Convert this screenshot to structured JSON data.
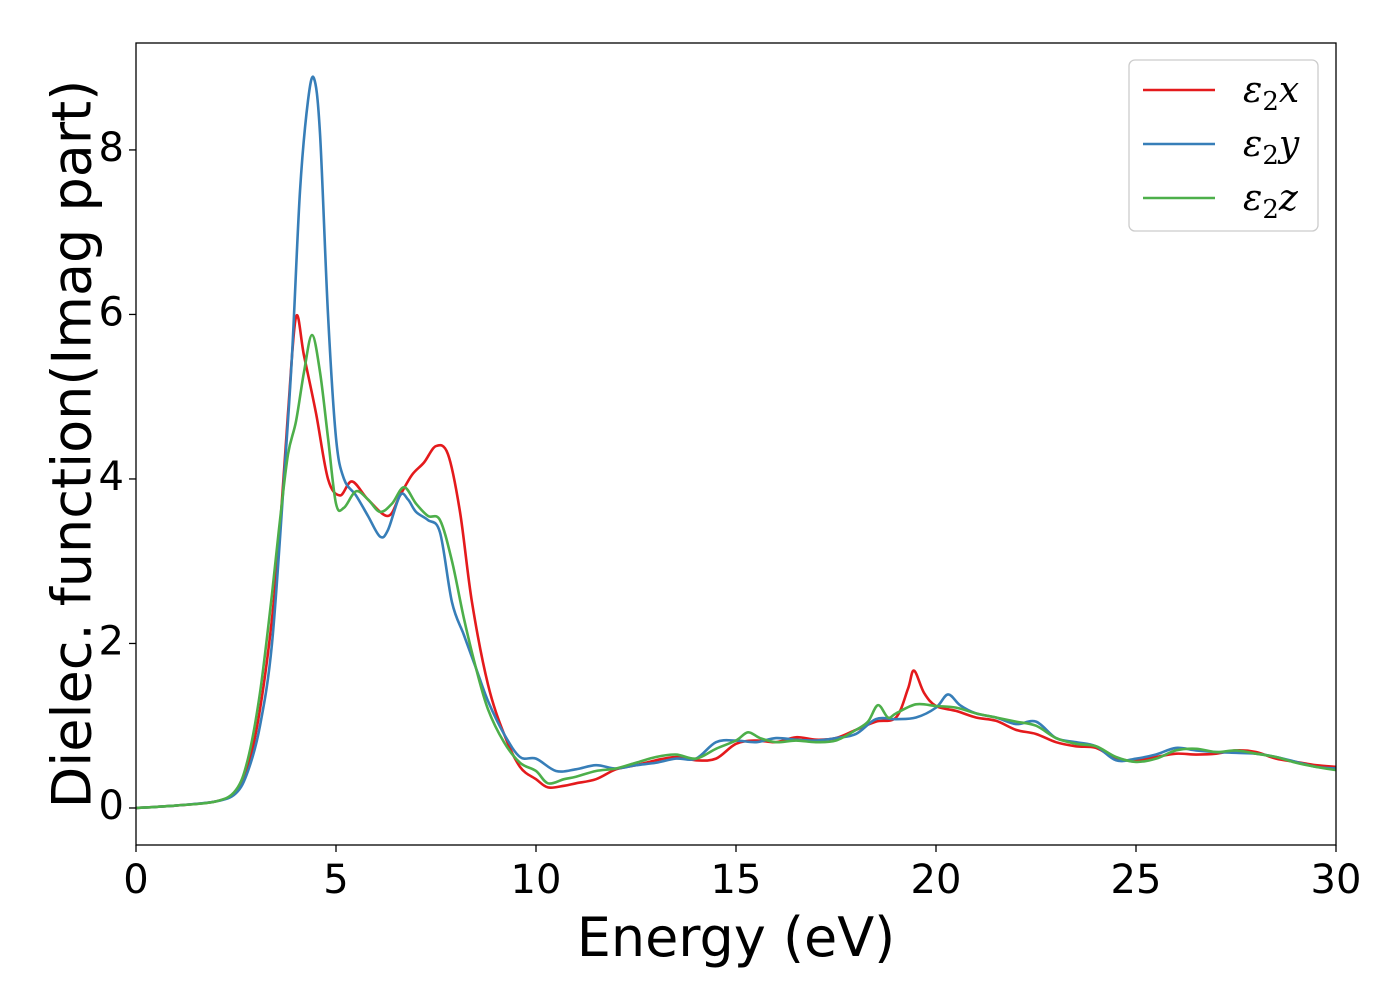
{
  "chart_data": {
    "type": "line",
    "title": "",
    "xlabel": "Energy (eV)",
    "ylabel": "Dielec. function(Imag part)",
    "xlim": [
      0,
      30
    ],
    "ylim": [
      -0.45,
      9.3
    ],
    "xticks": [
      0,
      5,
      10,
      15,
      20,
      25,
      30
    ],
    "yticks": [
      0,
      2,
      4,
      6,
      8
    ],
    "grid": false,
    "legend_position": "top-right",
    "series": [
      {
        "name": "ε₂x",
        "legend_main": "ε",
        "legend_sub": "2",
        "legend_suffix": "x",
        "color": "#e41a1c",
        "points": [
          [
            0,
            0
          ],
          [
            1,
            0.03
          ],
          [
            2,
            0.08
          ],
          [
            2.5,
            0.2
          ],
          [
            2.8,
            0.5
          ],
          [
            3.1,
            1.2
          ],
          [
            3.4,
            2.3
          ],
          [
            3.6,
            3.4
          ],
          [
            3.8,
            4.8
          ],
          [
            4.0,
            5.97
          ],
          [
            4.2,
            5.5
          ],
          [
            4.5,
            4.8
          ],
          [
            4.8,
            4.0
          ],
          [
            5.1,
            3.8
          ],
          [
            5.4,
            3.97
          ],
          [
            5.8,
            3.75
          ],
          [
            6.3,
            3.55
          ],
          [
            6.6,
            3.8
          ],
          [
            6.9,
            4.05
          ],
          [
            7.2,
            4.2
          ],
          [
            7.5,
            4.4
          ],
          [
            7.8,
            4.3
          ],
          [
            8.1,
            3.6
          ],
          [
            8.4,
            2.5
          ],
          [
            8.8,
            1.5
          ],
          [
            9.2,
            0.9
          ],
          [
            9.6,
            0.5
          ],
          [
            10.0,
            0.35
          ],
          [
            10.3,
            0.25
          ],
          [
            10.7,
            0.27
          ],
          [
            11.0,
            0.3
          ],
          [
            11.5,
            0.35
          ],
          [
            12.0,
            0.47
          ],
          [
            12.5,
            0.52
          ],
          [
            13.0,
            0.58
          ],
          [
            13.5,
            0.62
          ],
          [
            14.0,
            0.58
          ],
          [
            14.5,
            0.6
          ],
          [
            15.0,
            0.78
          ],
          [
            15.5,
            0.82
          ],
          [
            16.0,
            0.8
          ],
          [
            16.5,
            0.86
          ],
          [
            17.0,
            0.83
          ],
          [
            17.5,
            0.85
          ],
          [
            18.0,
            0.95
          ],
          [
            18.5,
            1.05
          ],
          [
            19.0,
            1.1
          ],
          [
            19.3,
            1.45
          ],
          [
            19.45,
            1.67
          ],
          [
            19.7,
            1.4
          ],
          [
            20.0,
            1.24
          ],
          [
            20.5,
            1.18
          ],
          [
            21.0,
            1.1
          ],
          [
            21.5,
            1.06
          ],
          [
            22.0,
            0.95
          ],
          [
            22.5,
            0.9
          ],
          [
            23.0,
            0.8
          ],
          [
            23.5,
            0.75
          ],
          [
            24.0,
            0.73
          ],
          [
            24.5,
            0.6
          ],
          [
            25.0,
            0.58
          ],
          [
            25.5,
            0.62
          ],
          [
            26.0,
            0.66
          ],
          [
            26.5,
            0.65
          ],
          [
            27.0,
            0.66
          ],
          [
            27.5,
            0.7
          ],
          [
            28.0,
            0.68
          ],
          [
            28.5,
            0.6
          ],
          [
            29.0,
            0.56
          ],
          [
            29.5,
            0.52
          ],
          [
            30.0,
            0.5
          ]
        ]
      },
      {
        "name": "ε₂y",
        "legend_main": "ε",
        "legend_sub": "2",
        "legend_suffix": "y",
        "color": "#377eb8",
        "points": [
          [
            0,
            0
          ],
          [
            1,
            0.03
          ],
          [
            2,
            0.08
          ],
          [
            2.5,
            0.18
          ],
          [
            2.8,
            0.45
          ],
          [
            3.1,
            1.0
          ],
          [
            3.4,
            2.0
          ],
          [
            3.7,
            4.0
          ],
          [
            3.9,
            5.5
          ],
          [
            4.1,
            7.5
          ],
          [
            4.3,
            8.6
          ],
          [
            4.45,
            8.87
          ],
          [
            4.6,
            8.2
          ],
          [
            4.8,
            6.0
          ],
          [
            5.0,
            4.5
          ],
          [
            5.2,
            4.0
          ],
          [
            5.5,
            3.8
          ],
          [
            5.8,
            3.55
          ],
          [
            6.1,
            3.3
          ],
          [
            6.3,
            3.38
          ],
          [
            6.6,
            3.8
          ],
          [
            6.8,
            3.75
          ],
          [
            7.0,
            3.6
          ],
          [
            7.3,
            3.5
          ],
          [
            7.6,
            3.35
          ],
          [
            7.9,
            2.5
          ],
          [
            8.2,
            2.1
          ],
          [
            8.5,
            1.7
          ],
          [
            8.8,
            1.3
          ],
          [
            9.2,
            0.9
          ],
          [
            9.6,
            0.62
          ],
          [
            10.0,
            0.6
          ],
          [
            10.5,
            0.45
          ],
          [
            11.0,
            0.47
          ],
          [
            11.5,
            0.52
          ],
          [
            12.0,
            0.48
          ],
          [
            12.5,
            0.52
          ],
          [
            13.0,
            0.55
          ],
          [
            13.5,
            0.6
          ],
          [
            14.0,
            0.6
          ],
          [
            14.5,
            0.8
          ],
          [
            15.0,
            0.82
          ],
          [
            15.5,
            0.8
          ],
          [
            16.0,
            0.85
          ],
          [
            16.5,
            0.83
          ],
          [
            17.0,
            0.82
          ],
          [
            17.5,
            0.85
          ],
          [
            18.0,
            0.9
          ],
          [
            18.5,
            1.08
          ],
          [
            19.0,
            1.08
          ],
          [
            19.5,
            1.1
          ],
          [
            20.0,
            1.22
          ],
          [
            20.3,
            1.38
          ],
          [
            20.6,
            1.25
          ],
          [
            21.0,
            1.15
          ],
          [
            21.5,
            1.1
          ],
          [
            22.0,
            1.02
          ],
          [
            22.5,
            1.05
          ],
          [
            23.0,
            0.85
          ],
          [
            23.5,
            0.8
          ],
          [
            24.0,
            0.75
          ],
          [
            24.5,
            0.58
          ],
          [
            25.0,
            0.6
          ],
          [
            25.5,
            0.65
          ],
          [
            26.0,
            0.73
          ],
          [
            26.5,
            0.7
          ],
          [
            27.0,
            0.68
          ],
          [
            27.5,
            0.67
          ],
          [
            28.0,
            0.66
          ],
          [
            28.5,
            0.62
          ],
          [
            29.0,
            0.56
          ],
          [
            29.5,
            0.5
          ],
          [
            30.0,
            0.48
          ]
        ]
      },
      {
        "name": "ε₂z",
        "legend_main": "ε",
        "legend_sub": "2",
        "legend_suffix": "z",
        "color": "#4daf4a",
        "points": [
          [
            0,
            0
          ],
          [
            1,
            0.03
          ],
          [
            2,
            0.08
          ],
          [
            2.5,
            0.22
          ],
          [
            2.8,
            0.6
          ],
          [
            3.1,
            1.4
          ],
          [
            3.4,
            2.6
          ],
          [
            3.6,
            3.5
          ],
          [
            3.8,
            4.3
          ],
          [
            4.0,
            4.7
          ],
          [
            4.2,
            5.3
          ],
          [
            4.4,
            5.75
          ],
          [
            4.6,
            5.3
          ],
          [
            4.8,
            4.5
          ],
          [
            5.0,
            3.7
          ],
          [
            5.2,
            3.65
          ],
          [
            5.5,
            3.85
          ],
          [
            5.8,
            3.75
          ],
          [
            6.1,
            3.6
          ],
          [
            6.4,
            3.7
          ],
          [
            6.7,
            3.9
          ],
          [
            7.0,
            3.7
          ],
          [
            7.3,
            3.55
          ],
          [
            7.6,
            3.5
          ],
          [
            7.9,
            3.0
          ],
          [
            8.2,
            2.3
          ],
          [
            8.5,
            1.7
          ],
          [
            8.8,
            1.2
          ],
          [
            9.2,
            0.8
          ],
          [
            9.6,
            0.55
          ],
          [
            10.0,
            0.45
          ],
          [
            10.3,
            0.3
          ],
          [
            10.7,
            0.35
          ],
          [
            11.0,
            0.38
          ],
          [
            11.5,
            0.45
          ],
          [
            12.0,
            0.48
          ],
          [
            12.5,
            0.55
          ],
          [
            13.0,
            0.62
          ],
          [
            13.5,
            0.65
          ],
          [
            14.0,
            0.6
          ],
          [
            14.5,
            0.72
          ],
          [
            15.0,
            0.82
          ],
          [
            15.3,
            0.92
          ],
          [
            15.6,
            0.85
          ],
          [
            16.0,
            0.8
          ],
          [
            16.5,
            0.82
          ],
          [
            17.0,
            0.8
          ],
          [
            17.5,
            0.82
          ],
          [
            18.0,
            0.95
          ],
          [
            18.3,
            1.05
          ],
          [
            18.55,
            1.25
          ],
          [
            18.8,
            1.1
          ],
          [
            19.0,
            1.15
          ],
          [
            19.5,
            1.26
          ],
          [
            20.0,
            1.24
          ],
          [
            20.5,
            1.22
          ],
          [
            21.0,
            1.15
          ],
          [
            21.5,
            1.1
          ],
          [
            22.0,
            1.05
          ],
          [
            22.5,
            1.0
          ],
          [
            23.0,
            0.85
          ],
          [
            23.5,
            0.78
          ],
          [
            24.0,
            0.75
          ],
          [
            24.5,
            0.62
          ],
          [
            25.0,
            0.56
          ],
          [
            25.5,
            0.6
          ],
          [
            26.0,
            0.7
          ],
          [
            26.5,
            0.72
          ],
          [
            27.0,
            0.68
          ],
          [
            27.5,
            0.7
          ],
          [
            28.0,
            0.66
          ],
          [
            28.5,
            0.62
          ],
          [
            29.0,
            0.55
          ],
          [
            29.5,
            0.5
          ],
          [
            30.0,
            0.46
          ]
        ]
      }
    ]
  }
}
